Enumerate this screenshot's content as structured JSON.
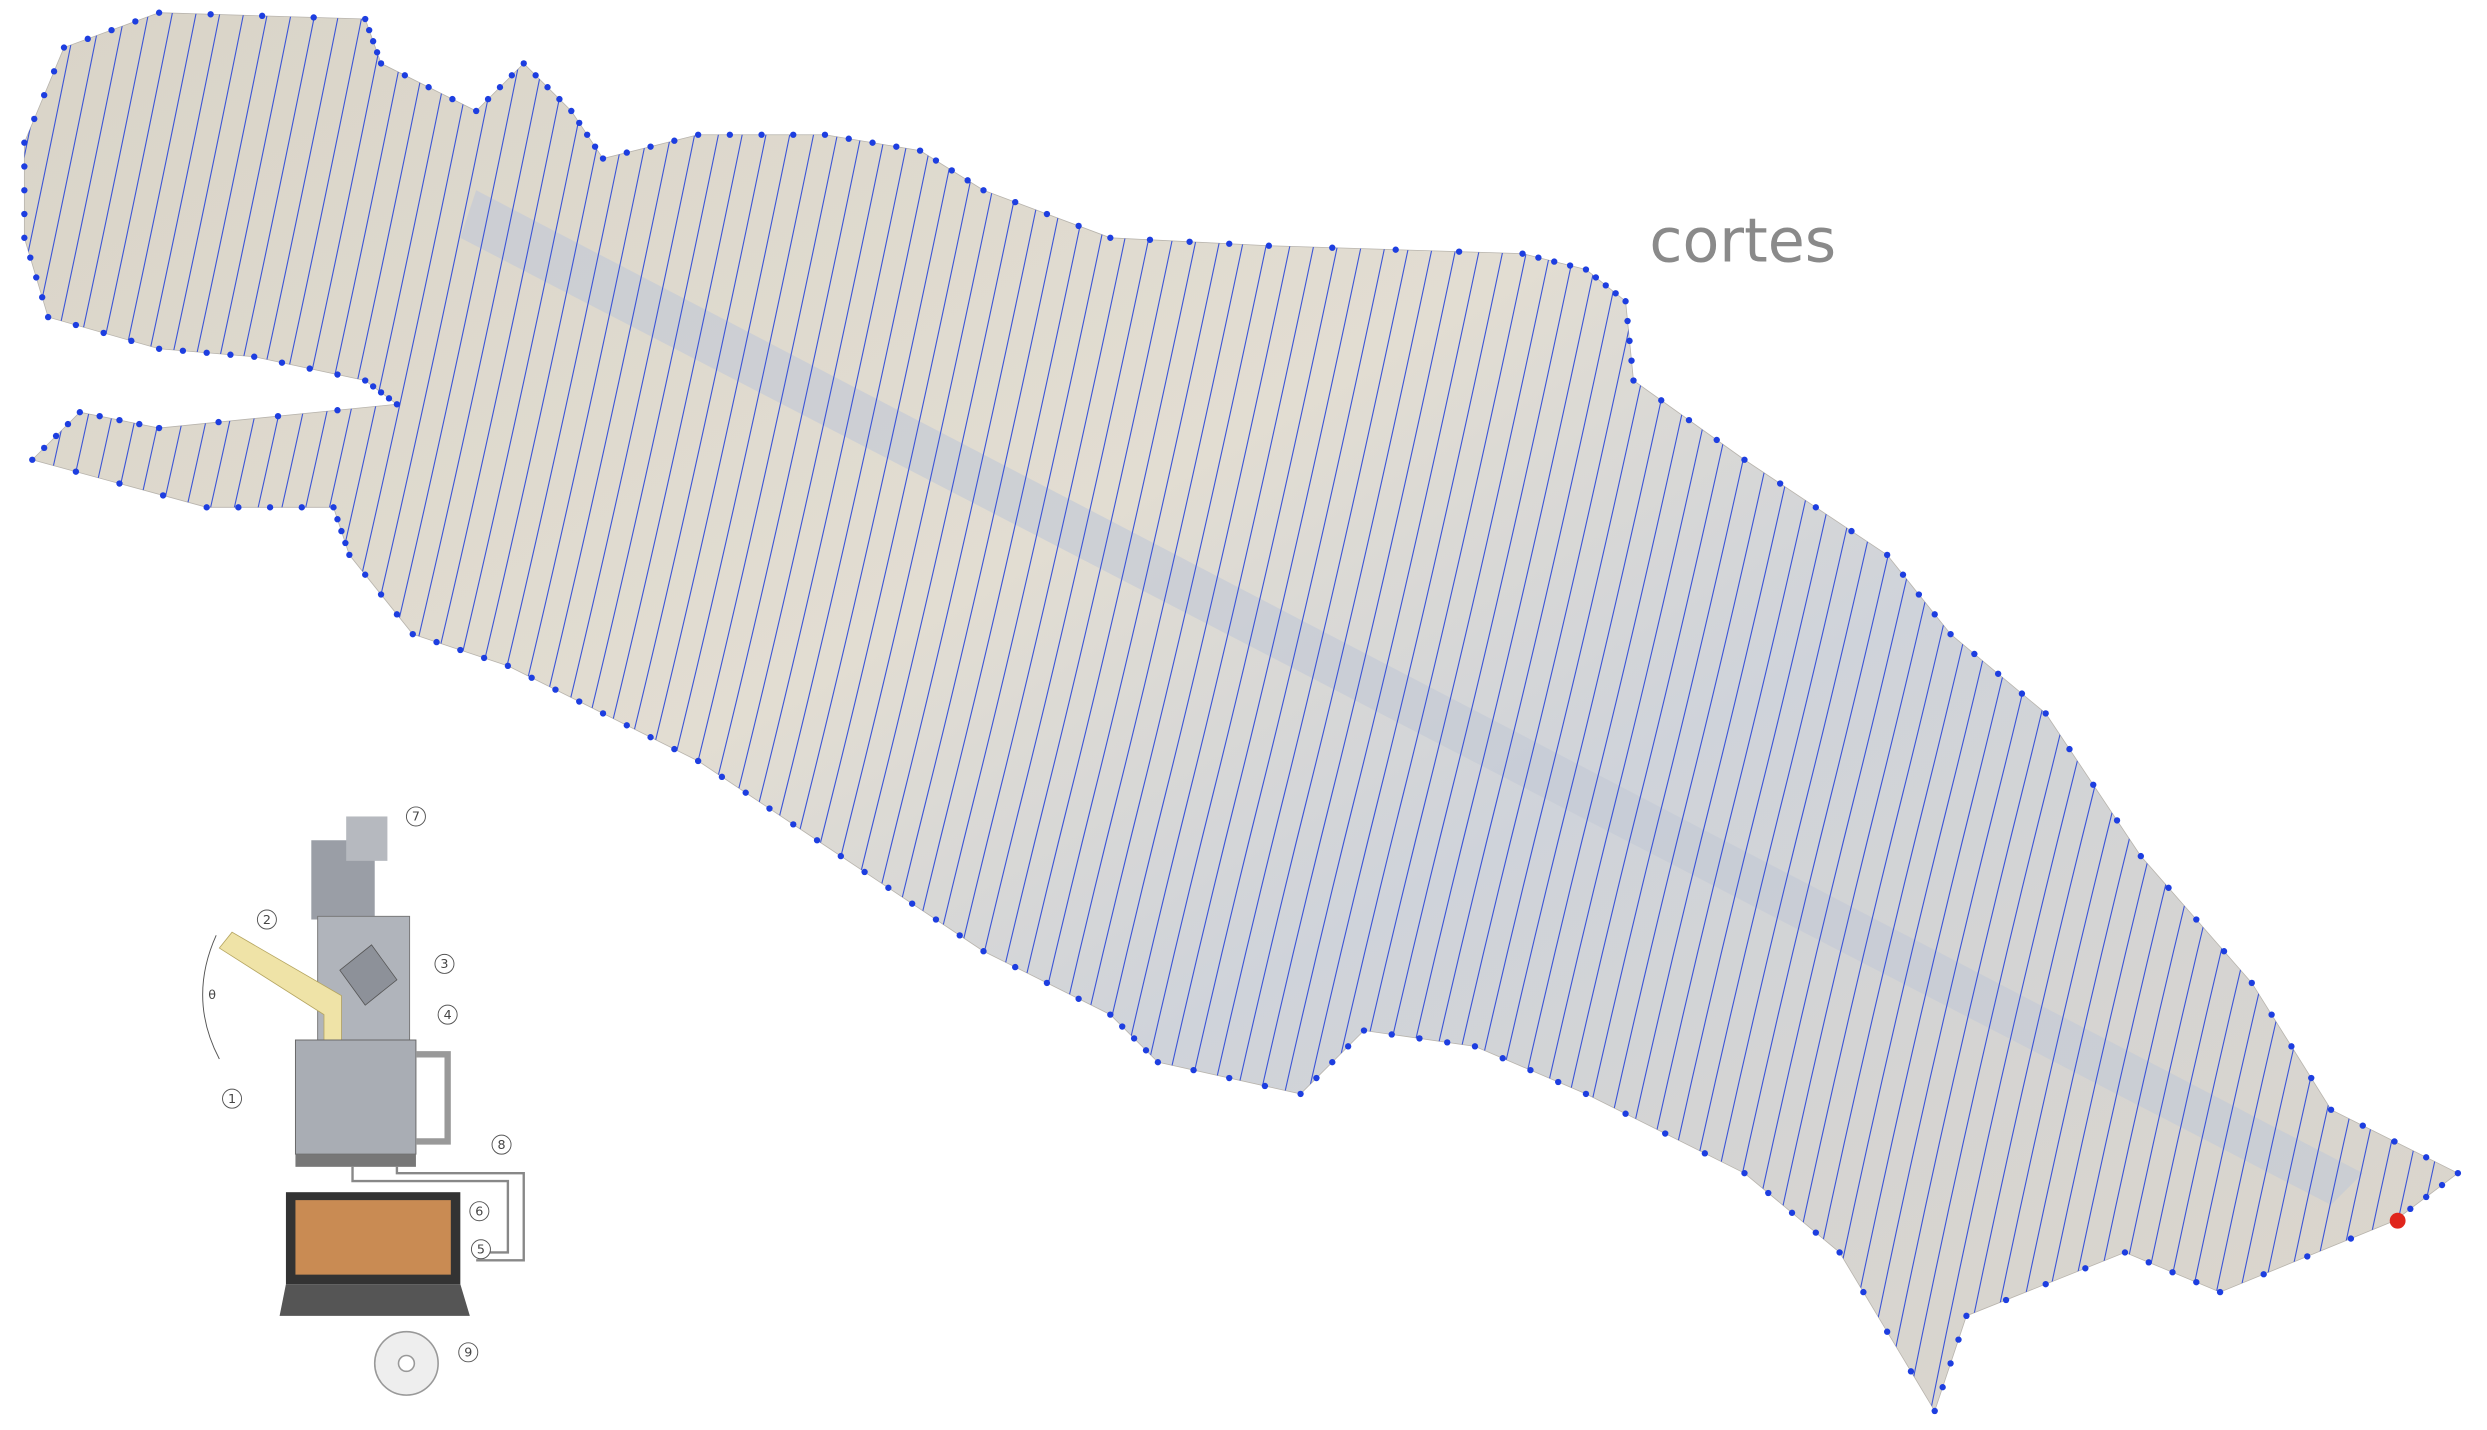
{
  "title": "cortes",
  "diagram": {
    "angle_label": "θ",
    "callouts": [
      "1",
      "2",
      "3",
      "4",
      "5",
      "6",
      "7",
      "8",
      "9"
    ]
  }
}
